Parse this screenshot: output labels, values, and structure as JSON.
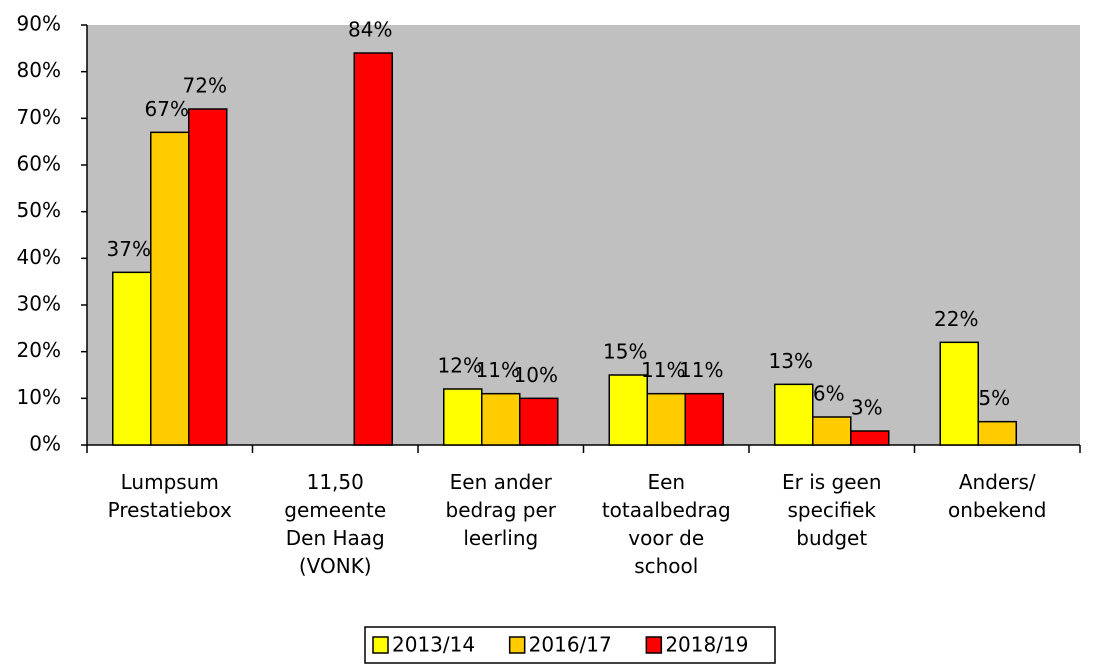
{
  "chart_data": {
    "type": "bar",
    "categories": [
      "Lumpsum Prestatiebox",
      "11,50 gemeente Den Haag (VONK)",
      "Een ander bedrag per leerling",
      "Een totaalbedrag voor de school",
      "Er is geen specifiek budget",
      "Anders/ onbekend"
    ],
    "series": [
      {
        "name": "2013/14",
        "color": "#ffff00",
        "values": [
          37,
          null,
          12,
          15,
          13,
          22
        ],
        "value_labels": [
          "37%",
          null,
          "12%",
          "15%",
          "13%",
          "22%"
        ]
      },
      {
        "name": "2016/17",
        "color": "#ffcc00",
        "values": [
          67,
          null,
          11,
          11,
          6,
          5
        ],
        "value_labels": [
          "67%",
          null,
          "11%",
          "11%",
          "6%",
          "5%"
        ]
      },
      {
        "name": "2018/19",
        "color": "#ff0000",
        "values": [
          72,
          84,
          10,
          11,
          3,
          null
        ],
        "value_labels": [
          "72%",
          "84%",
          "10%",
          "11%",
          "3%",
          null
        ]
      }
    ],
    "ylim": [
      0,
      90
    ],
    "yticks": [
      {
        "value": 0,
        "label": "0%"
      },
      {
        "value": 10,
        "label": "10%"
      },
      {
        "value": 20,
        "label": "20%"
      },
      {
        "value": 30,
        "label": "30%"
      },
      {
        "value": 40,
        "label": "40%"
      },
      {
        "value": 50,
        "label": "50%"
      },
      {
        "value": 60,
        "label": "60%"
      },
      {
        "value": 70,
        "label": "70%"
      },
      {
        "value": 80,
        "label": "80%"
      },
      {
        "value": 90,
        "label": "90%"
      }
    ],
    "plot_background": "#c0c0c0"
  }
}
